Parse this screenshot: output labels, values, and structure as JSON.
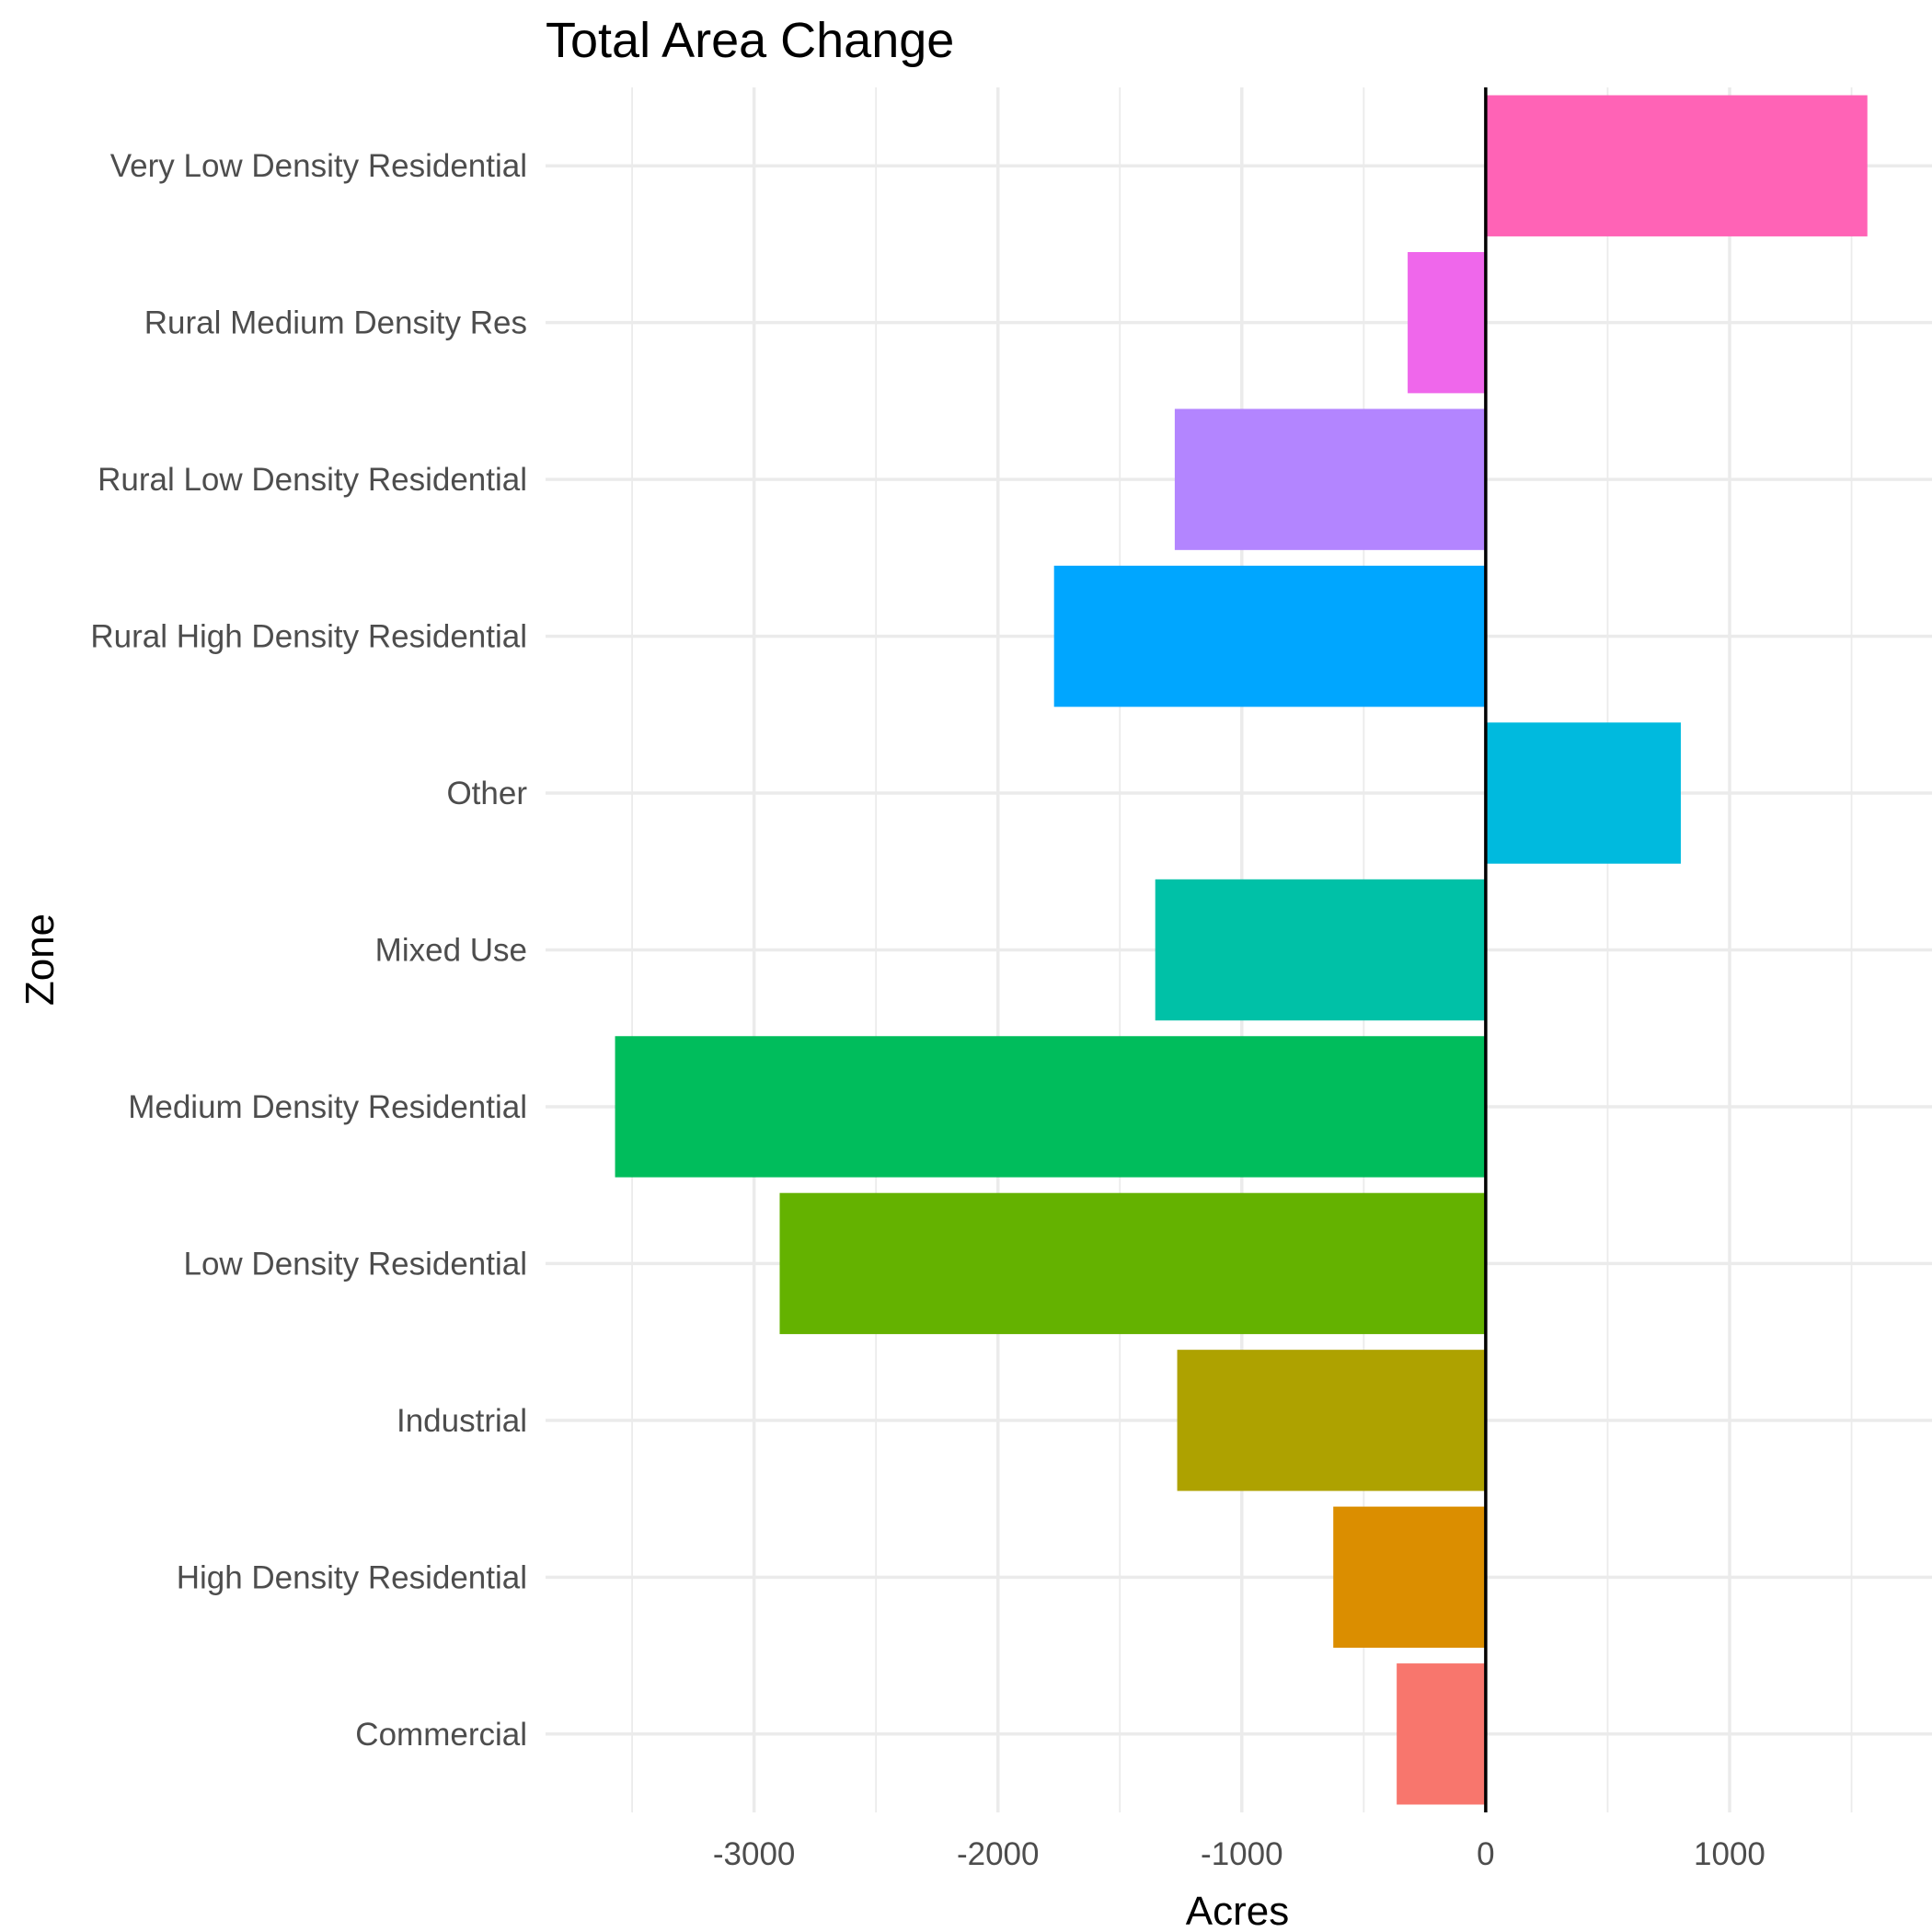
{
  "chart_data": {
    "type": "bar",
    "orientation": "horizontal",
    "title": "Total Area Change",
    "xlabel": "Acres",
    "ylabel": "Zone",
    "categories": [
      "Commercial",
      "High Density Residential",
      "Industrial",
      "Low Density Residential",
      "Medium Density Residential",
      "Mixed Use",
      "Other",
      "Rural High Density Residential",
      "Rural Low Density Residential",
      "Rural Medium Density Res",
      "Very Low Density Residential"
    ],
    "values": [
      -365,
      -625,
      -1265,
      -2895,
      -3570,
      -1355,
      800,
      -1770,
      -1275,
      -320,
      1565
    ],
    "colors": [
      "#F8766D",
      "#DB8E00",
      "#AEA200",
      "#64B200",
      "#00BD5C",
      "#00C1A7",
      "#00BADE",
      "#00A6FF",
      "#B385FF",
      "#EF67EB",
      "#FF63B6"
    ],
    "xlim": [
      -3855,
      1830
    ],
    "x_ticks": [
      -3000,
      -2000,
      -1000,
      0,
      1000
    ],
    "x_tick_labels": [
      "-3000",
      "-2000",
      "-1000",
      "0",
      "1000"
    ],
    "grid": true,
    "legend": "none"
  }
}
